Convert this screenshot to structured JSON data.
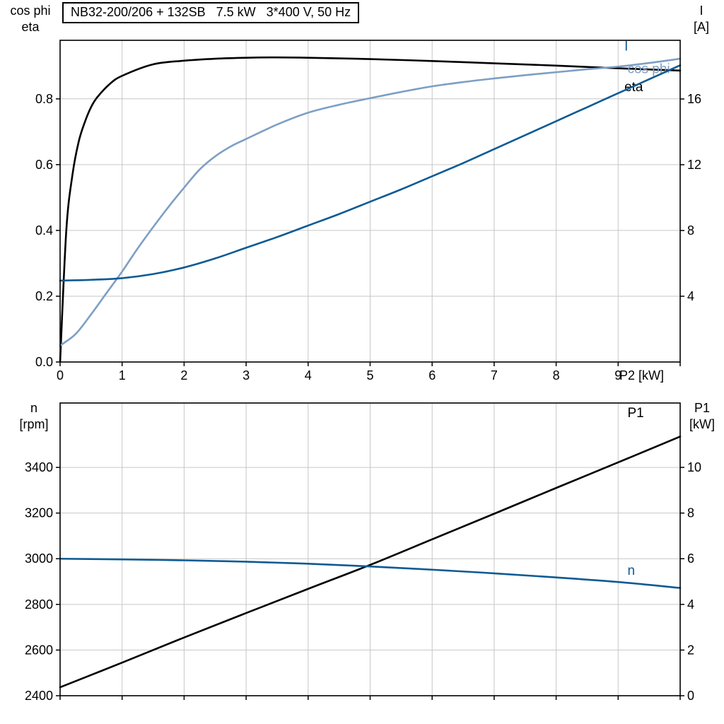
{
  "colors": {
    "curve_black": "#000000",
    "curve_dark_blue": "#0c5a93",
    "curve_light_blue": "#7d9fc4",
    "grid": "#c6c6c6",
    "axis": "#000000"
  },
  "chart_data": [
    {
      "type": "line",
      "title": "NB32-200/206 + 132SB   7.5 kW   3*400 V, 50 Hz",
      "xlabel": "P2 [kW]",
      "xlim": [
        0,
        10
      ],
      "grid": true,
      "legend_position": "curve-end-labels",
      "x_tick_labels": [
        "0",
        "1",
        "2",
        "3",
        "4",
        "5",
        "6",
        "7",
        "8",
        "9"
      ],
      "left_axis": {
        "label_lines": [
          "cos phi",
          "eta"
        ],
        "tick_labels": [
          "0.0",
          "0.2",
          "0.4",
          "0.6",
          "0.8"
        ],
        "lim": [
          0,
          0.978
        ]
      },
      "right_axis": {
        "label_lines": [
          "I",
          "[A]"
        ],
        "tick_labels": [
          "4",
          "8",
          "12",
          "16"
        ],
        "lim": [
          0,
          19.57
        ]
      },
      "series": [
        {
          "name": "eta",
          "label": "eta",
          "axis": "left",
          "color_key": "curve_black",
          "label_pos": [
            9.1,
            0.823
          ],
          "points": [
            [
              0,
              0
            ],
            [
              0.1,
              0.4
            ],
            [
              0.2,
              0.57
            ],
            [
              0.3,
              0.67
            ],
            [
              0.4,
              0.73
            ],
            [
              0.5,
              0.775
            ],
            [
              0.6,
              0.805
            ],
            [
              0.8,
              0.845
            ],
            [
              1,
              0.87
            ],
            [
              1.5,
              0.905
            ],
            [
              2,
              0.916
            ],
            [
              2.5,
              0.922
            ],
            [
              3,
              0.925
            ],
            [
              3.5,
              0.926
            ],
            [
              4,
              0.925
            ],
            [
              5,
              0.921
            ],
            [
              6,
              0.915
            ],
            [
              7,
              0.908
            ],
            [
              8,
              0.901
            ],
            [
              9,
              0.893
            ],
            [
              10,
              0.886
            ]
          ]
        },
        {
          "name": "cos_phi",
          "label": "cos phi",
          "axis": "left",
          "color_key": "curve_light_blue",
          "label_pos": [
            9.15,
            0.878
          ],
          "points": [
            [
              0,
              0.05
            ],
            [
              0.25,
              0.085
            ],
            [
              0.5,
              0.145
            ],
            [
              0.75,
              0.21
            ],
            [
              1,
              0.275
            ],
            [
              1.25,
              0.345
            ],
            [
              1.5,
              0.41
            ],
            [
              1.75,
              0.472
            ],
            [
              2,
              0.53
            ],
            [
              2.25,
              0.585
            ],
            [
              2.5,
              0.625
            ],
            [
              2.75,
              0.655
            ],
            [
              3,
              0.678
            ],
            [
              3.5,
              0.722
            ],
            [
              4,
              0.758
            ],
            [
              4.5,
              0.782
            ],
            [
              5,
              0.802
            ],
            [
              5.5,
              0.821
            ],
            [
              6,
              0.838
            ],
            [
              6.5,
              0.851
            ],
            [
              7,
              0.862
            ],
            [
              7.5,
              0.872
            ],
            [
              8,
              0.881
            ],
            [
              8.5,
              0.89
            ],
            [
              9,
              0.898
            ],
            [
              9.5,
              0.909
            ],
            [
              10,
              0.922
            ]
          ]
        },
        {
          "name": "I",
          "label": "I",
          "axis": "right",
          "color_key": "curve_dark_blue",
          "label_pos": [
            9.1,
            18.95
          ],
          "points": [
            [
              0,
              4.95
            ],
            [
              0.5,
              5.0
            ],
            [
              1,
              5.1
            ],
            [
              1.5,
              5.35
            ],
            [
              2,
              5.75
            ],
            [
              2.5,
              6.3
            ],
            [
              3,
              6.95
            ],
            [
              3.5,
              7.6
            ],
            [
              4,
              8.3
            ],
            [
              4.5,
              9.0
            ],
            [
              5,
              9.75
            ],
            [
              5.5,
              10.5
            ],
            [
              6,
              11.3
            ],
            [
              6.5,
              12.1
            ],
            [
              7,
              12.95
            ],
            [
              7.5,
              13.8
            ],
            [
              8,
              14.65
            ],
            [
              8.5,
              15.5
            ],
            [
              9,
              16.35
            ],
            [
              9.5,
              17.2
            ],
            [
              10,
              18.05
            ]
          ]
        }
      ]
    },
    {
      "type": "line",
      "title": "",
      "xlabel": "",
      "xlim": [
        0,
        10
      ],
      "grid": true,
      "legend_position": "curve-end-labels",
      "x_tick_labels": [],
      "left_axis": {
        "label_lines": [
          "n",
          "[rpm]"
        ],
        "tick_labels": [
          "2400",
          "2600",
          "2800",
          "3000",
          "3200",
          "3400"
        ],
        "lim": [
          2400,
          3682
        ]
      },
      "right_axis": {
        "label_lines": [
          "P1",
          "[kW]"
        ],
        "tick_labels": [
          "0",
          "2",
          "4",
          "6",
          "8",
          "10"
        ],
        "lim": [
          0,
          12.82
        ]
      },
      "series": [
        {
          "name": "P1",
          "label": "P1",
          "axis": "right",
          "color_key": "curve_black",
          "label_pos": [
            9.15,
            12.2
          ],
          "points": [
            [
              0,
              0.37
            ],
            [
              1,
              1.45
            ],
            [
              2,
              2.55
            ],
            [
              3,
              3.62
            ],
            [
              4,
              4.68
            ],
            [
              5,
              5.73
            ],
            [
              6,
              6.85
            ],
            [
              7,
              7.97
            ],
            [
              8,
              9.1
            ],
            [
              9,
              10.22
            ],
            [
              10,
              11.35
            ]
          ]
        },
        {
          "name": "n",
          "label": "n",
          "axis": "left",
          "color_key": "curve_dark_blue",
          "label_pos": [
            9.15,
            2930
          ],
          "points": [
            [
              0,
              3000
            ],
            [
              1,
              2997
            ],
            [
              2,
              2993
            ],
            [
              3,
              2987
            ],
            [
              4,
              2978
            ],
            [
              5,
              2966
            ],
            [
              6,
              2952
            ],
            [
              7,
              2936
            ],
            [
              8,
              2918
            ],
            [
              9,
              2898
            ],
            [
              10,
              2872
            ]
          ]
        }
      ]
    }
  ]
}
